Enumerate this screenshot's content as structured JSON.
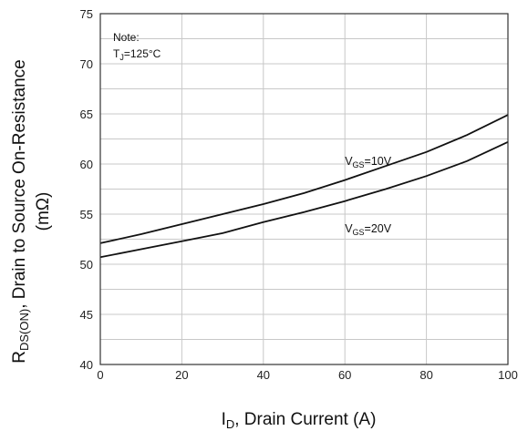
{
  "chart_data": {
    "type": "line",
    "xlabel": {
      "main": "I",
      "sub": "D",
      "rest": ", Drain Current (A)"
    },
    "ylabel": {
      "main": "R",
      "sub": "DS(ON)",
      "rest": ", Drain to Source On-Resistance",
      "line2": "(mΩ)"
    },
    "xlim": [
      0,
      100
    ],
    "ylim": [
      40,
      75
    ],
    "xticks": [
      "0",
      "20",
      "40",
      "60",
      "80",
      "100"
    ],
    "yticks": [
      "40",
      "45",
      "50",
      "55",
      "60",
      "65",
      "70",
      "75"
    ],
    "grid": true,
    "note": {
      "line1": "Note:",
      "line2_main": "T",
      "line2_sub": "J",
      "line2_rest": "=125°C"
    },
    "series": [
      {
        "label_main": "V",
        "label_sub": "GS",
        "label_rest": "=10V",
        "label_at": [
          60,
          59.9
        ],
        "x": [
          0,
          10,
          20,
          30,
          40,
          50,
          60,
          70,
          80,
          90,
          100
        ],
        "y": [
          52.1,
          53.0,
          54.0,
          55.0,
          56.0,
          57.1,
          58.4,
          59.8,
          61.2,
          62.9,
          64.9
        ]
      },
      {
        "label_main": "V",
        "label_sub": "GS",
        "label_rest": "=20V",
        "label_at": [
          60,
          53.2
        ],
        "x": [
          0,
          10,
          20,
          30,
          40,
          50,
          60,
          70,
          80,
          90,
          100
        ],
        "y": [
          50.7,
          51.5,
          52.3,
          53.1,
          54.2,
          55.2,
          56.3,
          57.5,
          58.8,
          60.3,
          62.2
        ]
      }
    ]
  }
}
